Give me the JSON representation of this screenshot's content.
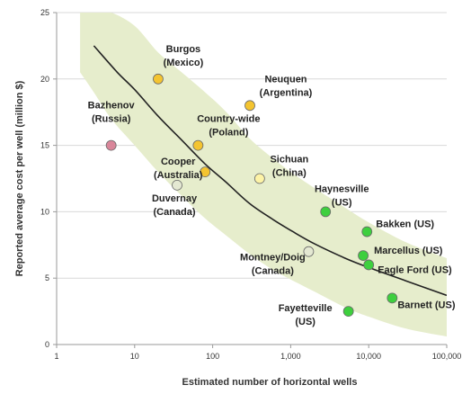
{
  "chart_data": {
    "type": "scatter",
    "title": "",
    "xlabel": "Estimated number of horizontal wells",
    "ylabel": "Reported average cost per well (million $)",
    "x_scale": "log",
    "xlim": [
      1,
      100000
    ],
    "ylim": [
      0,
      25
    ],
    "x_ticks": [
      1,
      10,
      100,
      1000,
      10000,
      100000
    ],
    "x_tick_labels": [
      "1",
      "10",
      "100",
      "1,000",
      "10,000",
      "100,000"
    ],
    "y_ticks": [
      0,
      5,
      10,
      15,
      20,
      25
    ],
    "y_tick_labels": [
      "0",
      "5",
      "10",
      "15",
      "20",
      "25"
    ],
    "grid": "horizontal",
    "legend": "none",
    "colors": {
      "band": "#e6edcc",
      "curve": "#222222",
      "axis": "#9a9a9a",
      "grid": "#d9d9d9",
      "yellow": "#f4c430",
      "light_yellow": "#fdf3a6",
      "pink": "#d9869a",
      "light_gray": "#e4e8d2",
      "green": "#3ecf3e"
    },
    "points": [
      {
        "label": "Bazhenov (Russia)",
        "lines": [
          "Bazhenov",
          "(Russia)"
        ],
        "x": 5,
        "y": 15,
        "color": "pink"
      },
      {
        "label": "Burgos (Mexico)",
        "lines": [
          "Burgos",
          "(Mexico)"
        ],
        "x": 20,
        "y": 20,
        "color": "yellow"
      },
      {
        "label": "Neuquen (Argentina)",
        "lines": [
          "Neuquen",
          "(Argentina)"
        ],
        "x": 300,
        "y": 18,
        "color": "yellow"
      },
      {
        "label": "Country-wide (Poland)",
        "lines": [
          "Country-wide",
          "(Poland)"
        ],
        "x": 65,
        "y": 15,
        "color": "yellow"
      },
      {
        "label": "Cooper (Australia)",
        "lines": [
          "Cooper",
          "(Australia)"
        ],
        "x": 80,
        "y": 13,
        "color": "yellow"
      },
      {
        "label": "Sichuan (China)",
        "lines": [
          "Sichuan",
          "(China)"
        ],
        "x": 400,
        "y": 12.5,
        "color": "light_yellow"
      },
      {
        "label": "Duvernay (Canada)",
        "lines": [
          "Duvernay",
          "(Canada)"
        ],
        "x": 35,
        "y": 12,
        "color": "light_gray"
      },
      {
        "label": "Haynesville (US)",
        "lines": [
          "Haynesville",
          "(US)"
        ],
        "x": 2800,
        "y": 10,
        "color": "green"
      },
      {
        "label": "Bakken (US)",
        "lines": [
          "Bakken (US)"
        ],
        "x": 9500,
        "y": 8.5,
        "color": "green"
      },
      {
        "label": "Marcellus (US)",
        "lines": [
          "Marcellus (US)"
        ],
        "x": 8500,
        "y": 6.7,
        "color": "green"
      },
      {
        "label": "Eagle Ford (US)",
        "lines": [
          "Eagle Ford (US)"
        ],
        "x": 10000,
        "y": 6,
        "color": "green"
      },
      {
        "label": "Montney/Doig (Canada)",
        "lines": [
          "Montney/Doig",
          "(Canada)"
        ],
        "x": 1700,
        "y": 7,
        "color": "light_gray"
      },
      {
        "label": "Fayetteville (US)",
        "lines": [
          "Fayetteville",
          "(US)"
        ],
        "x": 5500,
        "y": 2.5,
        "color": "green"
      },
      {
        "label": "Barnett (US)",
        "lines": [
          "Barnett (US)"
        ],
        "x": 20000,
        "y": 3.5,
        "color": "green"
      }
    ],
    "trend_curve": {
      "x": [
        3,
        6,
        10,
        20,
        40,
        80,
        150,
        300,
        600,
        1000,
        2000,
        5000,
        10000,
        30000,
        100000
      ],
      "y": [
        22.5,
        20.5,
        19.2,
        17.2,
        15.4,
        13.6,
        12.2,
        10.6,
        9.4,
        8.6,
        7.6,
        6.5,
        5.8,
        4.8,
        3.7
      ]
    },
    "band": {
      "x": [
        2,
        3,
        5,
        10,
        20,
        40,
        80,
        150,
        300,
        600,
        1000,
        2000,
        5000,
        10000,
        30000,
        100000
      ],
      "y_upper": [
        25,
        25,
        25,
        24,
        22,
        20.5,
        19,
        17.5,
        15.5,
        14,
        13,
        11.8,
        10.3,
        9.2,
        7.7,
        6.5
      ],
      "y_lower": [
        20.5,
        19,
        17,
        15,
        13,
        11.2,
        9.5,
        8.2,
        6.8,
        5.6,
        4.9,
        4,
        2.8,
        2.1,
        1.2,
        0.6
      ]
    }
  }
}
